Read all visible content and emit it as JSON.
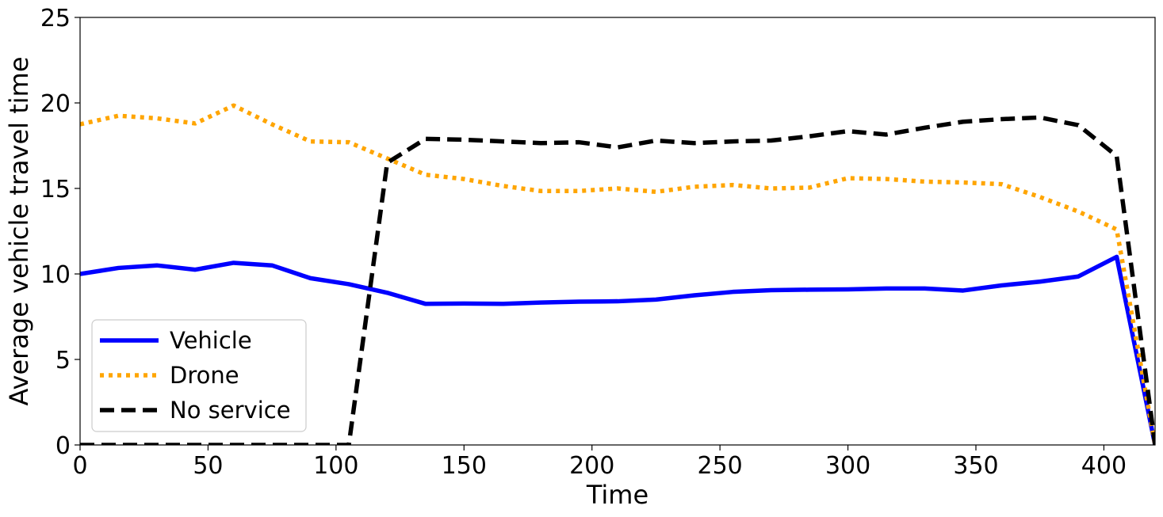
{
  "chart_data": {
    "type": "line",
    "xlabel": "Time",
    "ylabel": "Average vehicle travel time",
    "xlim": [
      0,
      420
    ],
    "ylim": [
      0,
      25
    ],
    "xticks": [
      0,
      50,
      100,
      150,
      200,
      250,
      300,
      350,
      400
    ],
    "yticks": [
      0,
      5,
      10,
      15,
      20,
      25
    ],
    "grid": false,
    "legend_position": "lower-left",
    "x": [
      0,
      15,
      30,
      45,
      60,
      75,
      90,
      105,
      120,
      135,
      150,
      165,
      180,
      195,
      210,
      225,
      240,
      255,
      270,
      285,
      300,
      315,
      330,
      345,
      360,
      375,
      390,
      405,
      420
    ],
    "series": [
      {
        "name": "Vehicle",
        "color": "#0000ff",
        "style": "solid",
        "values": [
          10.0,
          10.35,
          10.5,
          10.25,
          10.65,
          10.5,
          9.75,
          9.4,
          8.9,
          8.25,
          8.27,
          8.25,
          8.33,
          8.38,
          8.4,
          8.5,
          8.75,
          8.95,
          9.05,
          9.08,
          9.1,
          9.15,
          9.15,
          9.03,
          9.33,
          9.55,
          9.85,
          11.0,
          0.0
        ]
      },
      {
        "name": "Drone",
        "color": "#ffa500",
        "style": "dotted",
        "values": [
          18.75,
          19.25,
          19.1,
          18.8,
          19.85,
          18.75,
          17.75,
          17.7,
          16.75,
          15.8,
          15.55,
          15.15,
          14.85,
          14.85,
          15.0,
          14.8,
          15.1,
          15.2,
          15.0,
          15.05,
          15.6,
          15.55,
          15.4,
          15.35,
          15.25,
          14.5,
          13.65,
          12.6,
          0.0
        ]
      },
      {
        "name": "No service",
        "color": "#000000",
        "style": "dashed",
        "values": [
          0.0,
          0.0,
          0.0,
          0.0,
          0.0,
          0.0,
          0.0,
          0.0,
          16.5,
          17.9,
          17.85,
          17.75,
          17.65,
          17.7,
          17.4,
          17.8,
          17.65,
          17.75,
          17.8,
          18.05,
          18.35,
          18.15,
          18.55,
          18.9,
          19.05,
          19.15,
          18.7,
          16.9,
          0.0
        ]
      }
    ]
  }
}
